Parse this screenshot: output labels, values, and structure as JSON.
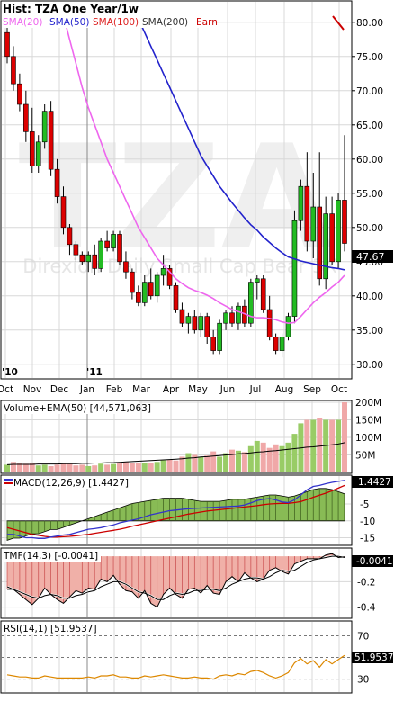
{
  "colors": {
    "background": "#ffffff",
    "frame": "#000000",
    "grid": "#d8d8d8",
    "up_candle": "#22bb22",
    "down_candle": "#dd0000",
    "sma20": "#ee66ee",
    "sma50": "#2222cc",
    "sma100": "#dd2222",
    "sma200": "#333333",
    "earn": "#cc0000",
    "volume_up": "#99cc66",
    "volume_down": "#f0a8a8",
    "macd_line": "#3333cc",
    "signal_line": "#cc0000",
    "histogram": "#88bb55",
    "tmf_fill": "#f0b0a8",
    "rsi_line": "#dd8800",
    "price_tag_bg": "#000000",
    "price_tag_fg": "#ffffff",
    "watermark": "#eeeeee"
  },
  "header": {
    "title": "Hist: TZA One Year/1w",
    "legend": [
      {
        "label": "SMA(20)",
        "color": "#ee66ee"
      },
      {
        "label": "SMA(50)",
        "color": "#2222cc"
      },
      {
        "label": "SMA(100)",
        "color": "#dd2222"
      },
      {
        "label": "SMA(200)",
        "color": "#333333"
      },
      {
        "label": "Earn",
        "color": "#cc0000"
      }
    ]
  },
  "watermark": {
    "symbol": "TZA",
    "name": "Direxion Daily Small Cap Bear 3X"
  },
  "chart_data": [
    {
      "type": "candlestick",
      "title": "Hist: TZA One Year/1w",
      "ylim": [
        28,
        83
      ],
      "yticks": [
        80,
        75,
        70,
        65,
        60,
        55,
        50,
        45,
        40,
        35,
        30
      ],
      "ytick_labels": [
        "80.00",
        "75.00",
        "70.00",
        "65.00",
        "60.00",
        "55.00",
        "50.00",
        "45.00",
        "40.00",
        "35.00",
        "30.00"
      ],
      "x_months": [
        "Oct",
        "Nov",
        "Dec",
        "Jan",
        "Feb",
        "Mar",
        "Apr",
        "May",
        "Jun",
        "Jul",
        "Aug",
        "Sep",
        "Oct"
      ],
      "year_labels": [
        {
          "label": "'10",
          "week": 0
        },
        {
          "label": "'11",
          "week": 14
        }
      ],
      "last_price": "47.67",
      "ohlc": [
        [
          78.5,
          82.5,
          74.0,
          75.0
        ],
        [
          75.0,
          76.5,
          70.0,
          71.0
        ],
        [
          71.0,
          72.5,
          67.0,
          68.0
        ],
        [
          68.0,
          70.0,
          62.5,
          64.0
        ],
        [
          64.0,
          67.5,
          58.0,
          59.0
        ],
        [
          59.0,
          63.5,
          58.0,
          62.5
        ],
        [
          62.5,
          68.0,
          61.5,
          67.0
        ],
        [
          67.0,
          68.5,
          57.5,
          58.5
        ],
        [
          58.5,
          60.0,
          53.5,
          54.5
        ],
        [
          54.5,
          56.0,
          49.0,
          50.0
        ],
        [
          50.0,
          50.5,
          46.0,
          47.5
        ],
        [
          47.5,
          48.0,
          45.0,
          46.0
        ],
        [
          46.0,
          46.5,
          44.5,
          45.0
        ],
        [
          45.0,
          46.5,
          43.5,
          46.0
        ],
        [
          46.0,
          47.5,
          43.0,
          44.0
        ],
        [
          44.0,
          48.5,
          43.5,
          48.0
        ],
        [
          48.0,
          49.5,
          46.5,
          47.0
        ],
        [
          47.0,
          49.5,
          46.5,
          49.0
        ],
        [
          49.0,
          49.5,
          44.5,
          45.0
        ],
        [
          45.0,
          46.5,
          42.5,
          43.5
        ],
        [
          43.5,
          44.0,
          39.5,
          40.5
        ],
        [
          40.5,
          41.5,
          38.5,
          39.0
        ],
        [
          39.0,
          43.0,
          38.5,
          42.0
        ],
        [
          42.0,
          44.0,
          39.5,
          40.0
        ],
        [
          40.0,
          43.5,
          39.0,
          43.0
        ],
        [
          43.0,
          46.0,
          41.5,
          44.0
        ],
        [
          44.0,
          44.5,
          41.0,
          41.5
        ],
        [
          41.5,
          42.0,
          37.5,
          38.0
        ],
        [
          38.0,
          39.0,
          35.5,
          36.0
        ],
        [
          36.0,
          37.5,
          34.5,
          37.0
        ],
        [
          37.0,
          38.0,
          34.5,
          35.0
        ],
        [
          35.0,
          37.5,
          34.0,
          37.0
        ],
        [
          37.0,
          37.5,
          33.0,
          34.0
        ],
        [
          34.0,
          35.0,
          31.5,
          32.0
        ],
        [
          32.0,
          36.5,
          31.5,
          36.0
        ],
        [
          36.0,
          38.0,
          35.0,
          37.5
        ],
        [
          37.5,
          38.5,
          35.5,
          36.0
        ],
        [
          36.0,
          39.0,
          35.0,
          38.5
        ],
        [
          38.5,
          39.5,
          35.5,
          36.0
        ],
        [
          36.0,
          42.5,
          35.5,
          42.0
        ],
        [
          42.0,
          43.0,
          39.5,
          42.5
        ],
        [
          42.5,
          43.0,
          37.5,
          38.0
        ],
        [
          38.0,
          40.0,
          33.5,
          34.0
        ],
        [
          34.0,
          34.5,
          31.5,
          32.0
        ],
        [
          32.0,
          34.5,
          31.0,
          34.0
        ],
        [
          34.0,
          37.5,
          33.5,
          37.0
        ],
        [
          37.0,
          52.5,
          36.0,
          51.0
        ],
        [
          51.0,
          57.0,
          49.5,
          56.0
        ],
        [
          56.0,
          61.0,
          46.5,
          48.0
        ],
        [
          48.0,
          58.0,
          45.5,
          53.0
        ],
        [
          53.0,
          61.0,
          41.5,
          42.5
        ],
        [
          42.5,
          54.5,
          41.0,
          52.0
        ],
        [
          52.0,
          54.5,
          44.5,
          45.0
        ],
        [
          45.0,
          55.0,
          44.0,
          54.0
        ],
        [
          54.0,
          63.5,
          46.5,
          47.67
        ]
      ],
      "sma20": [
        null,
        null,
        null,
        null,
        null,
        null,
        null,
        null,
        83,
        81,
        77.5,
        74,
        70.5,
        67.5,
        65,
        62.5,
        60,
        58,
        56,
        54,
        52,
        50,
        48.5,
        47,
        45.5,
        44.5,
        43.5,
        42.5,
        41.8,
        41.2,
        40.8,
        40.5,
        40.1,
        39.6,
        39.0,
        38.5,
        38.0,
        37.7,
        37.4,
        37.0,
        36.8,
        36.8,
        36.7,
        36.5,
        36.2,
        36.0,
        36.1,
        37.0,
        38.0,
        39.0,
        39.8,
        40.5,
        41.3,
        42.0,
        43.0
      ],
      "sma50": [
        null,
        null,
        null,
        null,
        null,
        null,
        null,
        null,
        null,
        null,
        null,
        null,
        null,
        null,
        null,
        null,
        null,
        null,
        null,
        null,
        82.5,
        80.5,
        78.5,
        76.5,
        74.5,
        72.5,
        70.5,
        68.5,
        66.5,
        64.5,
        62.5,
        60.5,
        59.0,
        57.5,
        56.0,
        54.8,
        53.6,
        52.5,
        51.4,
        50.4,
        49.6,
        48.6,
        47.8,
        47.0,
        46.3,
        45.7,
        45.4,
        45.1,
        44.9,
        44.7,
        44.5,
        44.3,
        44.1,
        44.0,
        43.8
      ]
    },
    {
      "type": "bar",
      "title": "Volume+EMA(50) [44,571,063]",
      "ylim": [
        0,
        200
      ],
      "yticks": [
        200,
        150,
        100,
        50
      ],
      "ytick_labels": [
        "200M",
        "150M",
        "100M",
        "50M"
      ],
      "values": [
        22,
        30,
        28,
        25,
        27,
        20,
        22,
        18,
        22,
        25,
        24,
        20,
        22,
        18,
        20,
        25,
        22,
        24,
        26,
        30,
        28,
        27,
        28,
        26,
        30,
        35,
        37,
        34,
        45,
        55,
        50,
        45,
        48,
        60,
        45,
        55,
        65,
        62,
        58,
        75,
        90,
        85,
        70,
        80,
        75,
        85,
        110,
        140,
        150,
        150,
        155,
        150,
        150,
        150,
        200
      ],
      "direction": [
        "u",
        "d",
        "d",
        "d",
        "d",
        "u",
        "u",
        "d",
        "d",
        "d",
        "d",
        "d",
        "d",
        "u",
        "d",
        "u",
        "d",
        "u",
        "d",
        "d",
        "d",
        "d",
        "u",
        "d",
        "u",
        "u",
        "d",
        "d",
        "d",
        "u",
        "d",
        "u",
        "d",
        "d",
        "u",
        "u",
        "d",
        "u",
        "d",
        "u",
        "u",
        "d",
        "d",
        "d",
        "u",
        "u",
        "u",
        "u",
        "d",
        "u",
        "d",
        "u",
        "d",
        "u",
        "d"
      ],
      "ema": [
        22,
        23,
        23,
        23,
        23,
        24,
        24,
        24,
        24,
        25,
        25,
        25,
        26,
        26,
        27,
        27,
        28,
        28,
        29,
        30,
        31,
        32,
        33,
        34,
        35,
        36,
        37,
        38,
        39,
        41,
        42,
        44,
        45,
        47,
        48,
        50,
        51,
        53,
        54,
        56,
        58,
        59,
        61,
        62,
        64,
        66,
        68,
        70,
        72,
        73,
        75,
        77,
        79,
        81,
        85
      ]
    },
    {
      "type": "line",
      "title": "MACD(12,26,9) [1.4427]",
      "ylim": [
        -17,
        3
      ],
      "yticks": [
        -5,
        -10,
        -15
      ],
      "ytick_labels": [
        "-5",
        "-10",
        "-15"
      ],
      "last_value": "1.4427",
      "macd": [
        -14,
        -14,
        -14.5,
        -15,
        -15,
        -15.2,
        -15.2,
        -14.8,
        -14.5,
        -14.2,
        -14,
        -13.5,
        -13,
        -12.5,
        -12.3,
        -12,
        -11.6,
        -11.2,
        -10.6,
        -10.2,
        -9.8,
        -9.4,
        -8.8,
        -8.2,
        -7.8,
        -7.4,
        -7,
        -6.8,
        -6.6,
        -6.4,
        -6.3,
        -6.2,
        -6.1,
        -6,
        -5.9,
        -5.8,
        -5.7,
        -5.6,
        -5.3,
        -4.7,
        -4,
        -3.6,
        -3.4,
        -3.8,
        -4.4,
        -4.6,
        -3.8,
        -2.3,
        -0.8,
        0.2,
        0.5,
        1.0,
        1.4,
        1.7,
        2.0
      ],
      "signal": [
        -12,
        -12.5,
        -13,
        -13.5,
        -14,
        -14.3,
        -14.6,
        -14.8,
        -14.8,
        -14.7,
        -14.6,
        -14.4,
        -14.2,
        -14,
        -13.7,
        -13.4,
        -13.1,
        -12.8,
        -12.5,
        -12.1,
        -11.6,
        -11.2,
        -10.8,
        -10.4,
        -10,
        -9.6,
        -9.2,
        -8.8,
        -8.4,
        -8,
        -7.7,
        -7.4,
        -7.1,
        -6.9,
        -6.7,
        -6.5,
        -6.3,
        -6.1,
        -5.9,
        -5.7,
        -5.5,
        -5.2,
        -5,
        -4.9,
        -4.8,
        -4.8,
        -4.6,
        -4.3,
        -3.7,
        -3.0,
        -2.4,
        -1.8,
        -1.1,
        -0.3,
        0.5
      ],
      "histogram": [
        -2,
        -1.5,
        -1.5,
        -1.5,
        -1,
        -0.9,
        -0.6,
        0,
        0.3,
        0.5,
        0.6,
        0.9,
        1.2,
        1.5,
        1.4,
        1.4,
        1.5,
        1.6,
        1.9,
        1.9,
        1.8,
        1.8,
        2,
        2.2,
        2.2,
        2.2,
        2.2,
        2,
        1.8,
        1.6,
        1.4,
        1.2,
        1,
        0.9,
        0.8,
        0.7,
        0.6,
        0.5,
        0.6,
        1,
        1.5,
        1.6,
        1.6,
        1.1,
        0.4,
        0.2,
        0.8,
        2,
        2.9,
        3.2,
        2.9,
        2.8,
        2.5,
        2.0,
        1.5
      ],
      "hist_scale": [
        -9,
        -8,
        -8,
        -7,
        -6,
        -6,
        -5,
        -4,
        -4,
        -3,
        -2,
        -1,
        0,
        1,
        2,
        3,
        4,
        5,
        6,
        7,
        8,
        8.5,
        9,
        9.5,
        10,
        10.5,
        10.5,
        10.5,
        10.5,
        10,
        9.5,
        9,
        9,
        9,
        9,
        9.5,
        10,
        10,
        10,
        10.5,
        11,
        11.5,
        12,
        12,
        11.5,
        11,
        11.5,
        12.5,
        13.5,
        14.5,
        15,
        15,
        14.5,
        13.5,
        12.5
      ]
    },
    {
      "type": "area",
      "title": "TMF(14,3) [-0.0041]",
      "ylim": [
        -0.48,
        0.05
      ],
      "yticks": [
        -0.2,
        -0.4
      ],
      "ytick_labels": [
        "-0.2",
        "-0.4"
      ],
      "last_value": "-0.0041",
      "tmf": [
        -0.26,
        -0.26,
        -0.3,
        -0.34,
        -0.38,
        -0.33,
        -0.25,
        -0.3,
        -0.34,
        -0.37,
        -0.32,
        -0.27,
        -0.29,
        -0.25,
        -0.26,
        -0.18,
        -0.2,
        -0.15,
        -0.22,
        -0.27,
        -0.28,
        -0.33,
        -0.27,
        -0.37,
        -0.4,
        -0.3,
        -0.25,
        -0.3,
        -0.33,
        -0.26,
        -0.25,
        -0.29,
        -0.23,
        -0.29,
        -0.3,
        -0.2,
        -0.16,
        -0.2,
        -0.13,
        -0.17,
        -0.2,
        -0.18,
        -0.11,
        -0.09,
        -0.12,
        -0.14,
        -0.06,
        -0.04,
        -0.02,
        -0.02,
        -0.02,
        0.01,
        0.02,
        -0.01,
        -0.0041
      ],
      "tmf_signal": [
        -0.24,
        -0.26,
        -0.28,
        -0.3,
        -0.32,
        -0.33,
        -0.31,
        -0.3,
        -0.31,
        -0.33,
        -0.33,
        -0.31,
        -0.3,
        -0.28,
        -0.27,
        -0.24,
        -0.22,
        -0.2,
        -0.2,
        -0.22,
        -0.25,
        -0.28,
        -0.29,
        -0.31,
        -0.34,
        -0.34,
        -0.31,
        -0.29,
        -0.3,
        -0.29,
        -0.27,
        -0.27,
        -0.26,
        -0.26,
        -0.27,
        -0.25,
        -0.22,
        -0.2,
        -0.18,
        -0.17,
        -0.17,
        -0.18,
        -0.16,
        -0.13,
        -0.11,
        -0.12,
        -0.11,
        -0.08,
        -0.05,
        -0.03,
        -0.02,
        -0.01,
        0,
        0,
        -0.01
      ]
    },
    {
      "type": "line",
      "title": "RSI(14,1) [51.9537]",
      "ylim": [
        18,
        82
      ],
      "yticks": [
        70,
        50,
        30
      ],
      "ytick_labels": [
        "70",
        "50",
        "30"
      ],
      "last_value": "51.9537",
      "rsi": [
        34,
        33,
        32,
        32,
        31,
        31,
        33,
        32,
        31,
        31,
        31,
        31,
        31,
        32,
        31,
        33,
        33,
        34,
        32,
        32,
        31,
        31,
        33,
        32,
        33,
        34,
        33,
        32,
        31,
        31,
        32,
        31,
        31,
        30,
        33,
        34,
        33,
        35,
        34,
        37,
        38,
        36,
        33,
        31,
        33,
        36,
        45,
        49,
        44,
        47,
        41,
        48,
        44,
        48,
        51.95
      ]
    }
  ]
}
